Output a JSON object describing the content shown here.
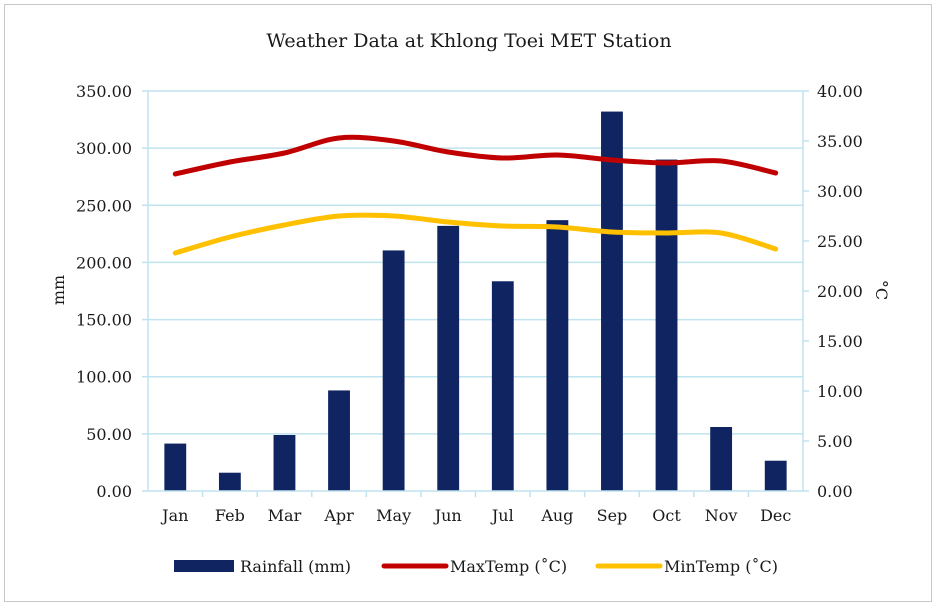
{
  "chart_data": {
    "type": "bar",
    "title": "Weather Data at Khlong Toei MET Station",
    "categories": [
      "Jan",
      "Feb",
      "Mar",
      "Apr",
      "May",
      "Jun",
      "Jul",
      "Aug",
      "Sep",
      "Oct",
      "Nov",
      "Dec"
    ],
    "ylabel_left": "mm",
    "ylabel_right": "°C",
    "ylim_left": [
      0,
      350
    ],
    "ylim_right": [
      0,
      40
    ],
    "yticks_left": [
      "0.00",
      "50.00",
      "100.00",
      "150.00",
      "200.00",
      "250.00",
      "300.00",
      "350.00"
    ],
    "yticks_right": [
      "0.00",
      "5.00",
      "10.00",
      "15.00",
      "20.00",
      "25.00",
      "30.00",
      "35.00",
      "40.00"
    ],
    "grid": true,
    "legend_position": "bottom",
    "series": [
      {
        "name": "Rainfall (mm)",
        "type": "bar",
        "axis": "left",
        "color": "#0f2460",
        "values": [
          41.5,
          16,
          49,
          88,
          210.5,
          232,
          183.5,
          237,
          332,
          290,
          56,
          26.5
        ]
      },
      {
        "name": "MaxTemp (˚C)",
        "type": "line",
        "axis": "right",
        "color": "#c00000",
        "values": [
          31.7,
          32.9,
          33.8,
          35.3,
          35.0,
          33.9,
          33.3,
          33.6,
          33.1,
          32.8,
          33.0,
          31.8
        ]
      },
      {
        "name": "MinTemp (˚C)",
        "type": "line",
        "axis": "right",
        "color": "#ffc000",
        "values": [
          23.8,
          25.4,
          26.6,
          27.5,
          27.5,
          26.9,
          26.5,
          26.4,
          25.9,
          25.8,
          25.8,
          24.2
        ]
      }
    ]
  }
}
